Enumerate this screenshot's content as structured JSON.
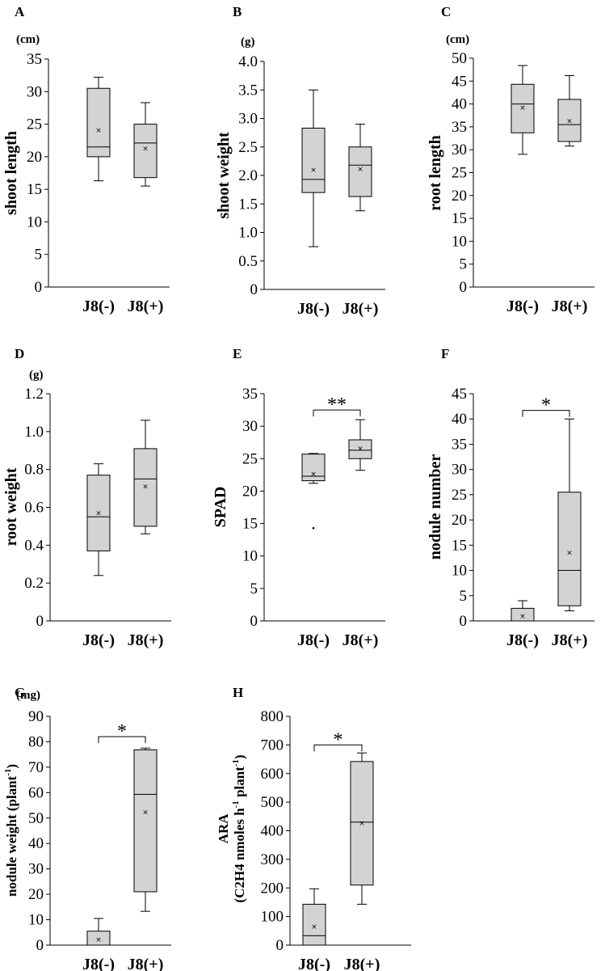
{
  "chart_data": [
    {
      "type": "box",
      "panel": "A",
      "unit": "(cm)",
      "ylabel": "shoot length",
      "ylim": [
        0,
        35
      ],
      "yticks": [
        "0",
        "5",
        "10",
        "15",
        "20",
        "25",
        "30",
        "35"
      ],
      "categories": [
        "J8(-)",
        "J8(+)"
      ],
      "boxes": [
        {
          "min": 16.3,
          "q1": 20,
          "median": 21.5,
          "q3": 30.5,
          "max": 32.2,
          "mean": 24.1,
          "outliers": []
        },
        {
          "min": 15.5,
          "q1": 16.8,
          "median": 22.1,
          "q3": 25,
          "max": 28.3,
          "mean": 21.3,
          "outliers": []
        }
      ],
      "significance": ""
    },
    {
      "type": "box",
      "panel": "B",
      "unit": "(g)",
      "ylabel": "shoot weight",
      "ylim": [
        0,
        4.0
      ],
      "yticks": [
        "0",
        "0.5",
        "1.0",
        "1.5",
        "2.0",
        "2.5",
        "3.0",
        "3.5",
        "4.0"
      ],
      "categories": [
        "J8(-)",
        "J8(+)"
      ],
      "boxes": [
        {
          "min": 0.75,
          "q1": 1.7,
          "median": 1.93,
          "q3": 2.83,
          "max": 3.5,
          "mean": 2.1,
          "outliers": []
        },
        {
          "min": 1.38,
          "q1": 1.63,
          "median": 2.18,
          "q3": 2.5,
          "max": 2.9,
          "mean": 2.11,
          "outliers": []
        }
      ],
      "significance": ""
    },
    {
      "type": "box",
      "panel": "C",
      "unit": "(cm)",
      "ylabel": "root length",
      "ylim": [
        0,
        50
      ],
      "yticks": [
        "0",
        "5",
        "10",
        "15",
        "20",
        "25",
        "30",
        "35",
        "40",
        "45",
        "50"
      ],
      "categories": [
        "J8(-)",
        "J8(+)"
      ],
      "boxes": [
        {
          "min": 29,
          "q1": 33.7,
          "median": 40,
          "q3": 44.3,
          "max": 48.4,
          "mean": 39.2,
          "outliers": []
        },
        {
          "min": 30.8,
          "q1": 31.8,
          "median": 35.5,
          "q3": 41,
          "max": 46.2,
          "mean": 36.3,
          "outliers": []
        }
      ],
      "significance": ""
    },
    {
      "type": "box",
      "panel": "D",
      "unit": "(g)",
      "ylabel": "root weight",
      "ylim": [
        0,
        1.2
      ],
      "yticks": [
        "0",
        "0.2",
        "0.4",
        "0.6",
        "0.8",
        "1.0",
        "1.2"
      ],
      "categories": [
        "J8(-)",
        "J8(+)"
      ],
      "boxes": [
        {
          "min": 0.24,
          "q1": 0.37,
          "median": 0.55,
          "q3": 0.77,
          "max": 0.83,
          "mean": 0.57,
          "outliers": []
        },
        {
          "min": 0.46,
          "q1": 0.5,
          "median": 0.75,
          "q3": 0.91,
          "max": 1.06,
          "mean": 0.71,
          "outliers": []
        }
      ],
      "significance": ""
    },
    {
      "type": "box",
      "panel": "E",
      "unit": "",
      "ylabel": "SPAD",
      "ylim": [
        0,
        35
      ],
      "yticks": [
        "0",
        "5",
        "10",
        "15",
        "20",
        "25",
        "30",
        "35"
      ],
      "categories": [
        "J8(-)",
        "J8(+)"
      ],
      "boxes": [
        {
          "min": 21.2,
          "q1": 21.6,
          "median": 22.3,
          "q3": 25.7,
          "max": 25.8,
          "mean": 22.7,
          "outliers": [
            14.3
          ]
        },
        {
          "min": 23.2,
          "q1": 25,
          "median": 26.3,
          "q3": 27.9,
          "max": 31,
          "mean": 26.6,
          "outliers": []
        }
      ],
      "significance": "**",
      "bracket_y": 32.5
    },
    {
      "type": "box",
      "panel": "F",
      "unit": "",
      "ylabel": "nodule number",
      "ylim": [
        0,
        45
      ],
      "yticks": [
        "0",
        "5",
        "10",
        "15",
        "20",
        "25",
        "30",
        "35",
        "40",
        "45"
      ],
      "categories": [
        "J8(-)",
        "J8(+)"
      ],
      "boxes": [
        {
          "min": 0,
          "q1": 0,
          "median": 0,
          "q3": 2.5,
          "max": 4,
          "mean": 1,
          "outliers": []
        },
        {
          "min": 2,
          "q1": 3,
          "median": 10,
          "q3": 25.5,
          "max": 40,
          "mean": 13.5,
          "outliers": []
        }
      ],
      "significance": "*",
      "bracket_y": 41.7
    },
    {
      "type": "box",
      "panel": "G",
      "unit": "(mg)",
      "ylabel": "nodule weight (plant-1)",
      "ylabel_main": "nodule weight (plant",
      "ylabel_sup": "-1",
      "ylabel_tail": ")",
      "ylim": [
        0,
        90
      ],
      "yticks": [
        "0",
        "10",
        "20",
        "30",
        "40",
        "50",
        "60",
        "70",
        "80",
        "90"
      ],
      "categories": [
        "J8(-)",
        "J8(+)"
      ],
      "boxes": [
        {
          "min": 0,
          "q1": 0,
          "median": 0,
          "q3": 5.5,
          "max": 10.5,
          "mean": 2.3,
          "outliers": []
        },
        {
          "min": 13.3,
          "q1": 21,
          "median": 59.3,
          "q3": 76.8,
          "max": 77.5,
          "mean": 52.3,
          "outliers": []
        }
      ],
      "significance": "*",
      "bracket_y": 82
    },
    {
      "type": "box",
      "panel": "H",
      "unit": "",
      "ylabel": "ARA",
      "ylabel2": "(C2H4 nmoles h-1 plant-1)",
      "ylabel2_a": "(C2H4 nmoles h",
      "ylabel2_sup1": "-1",
      "ylabel2_b": " plant",
      "ylabel2_sup2": "-1",
      "ylabel2_c": ")",
      "ylim": [
        0,
        800
      ],
      "yticks": [
        "0",
        "100",
        "200",
        "300",
        "400",
        "500",
        "600",
        "700",
        "800"
      ],
      "categories": [
        "J8(-)",
        "J8(+)"
      ],
      "boxes": [
        {
          "min": 0,
          "q1": 0,
          "median": 33,
          "q3": 143,
          "max": 197,
          "mean": 65,
          "outliers": []
        },
        {
          "min": 143,
          "q1": 210,
          "median": 430,
          "q3": 642,
          "max": 672,
          "mean": 427,
          "outliers": []
        }
      ],
      "significance": "*",
      "bracket_y": 700
    }
  ]
}
